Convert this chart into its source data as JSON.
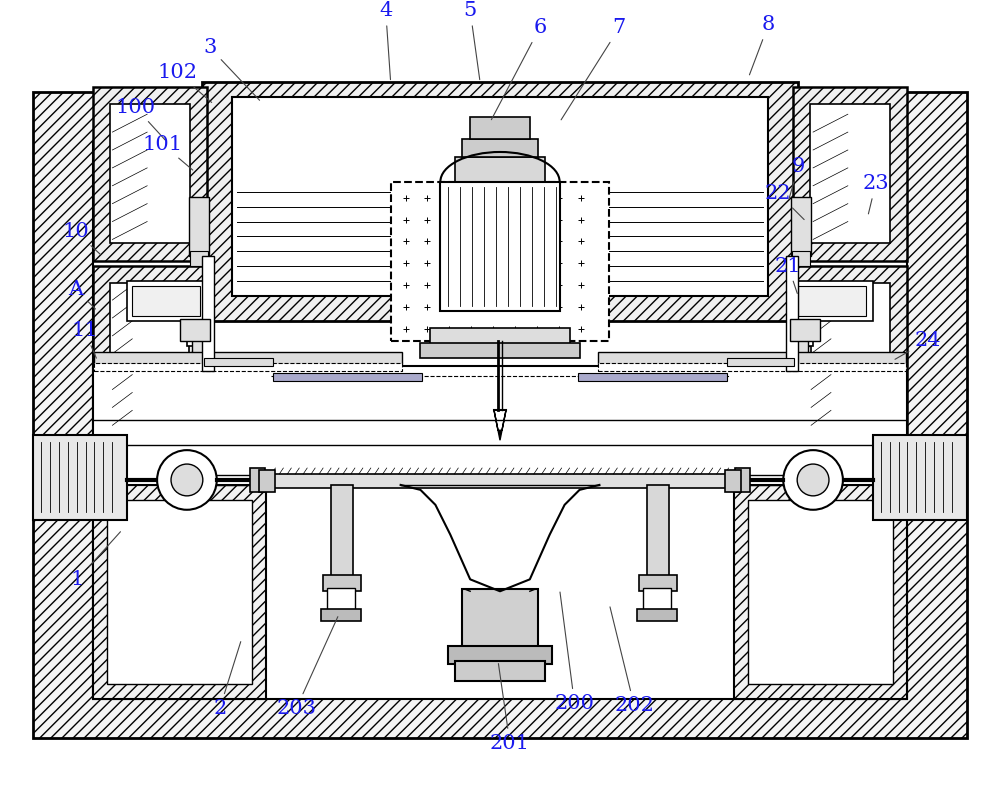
{
  "bg_color": "#ffffff",
  "line_color": "#000000",
  "label_color": "#1a1aee",
  "fig_width": 10.0,
  "fig_height": 7.98,
  "dpi": 100
}
